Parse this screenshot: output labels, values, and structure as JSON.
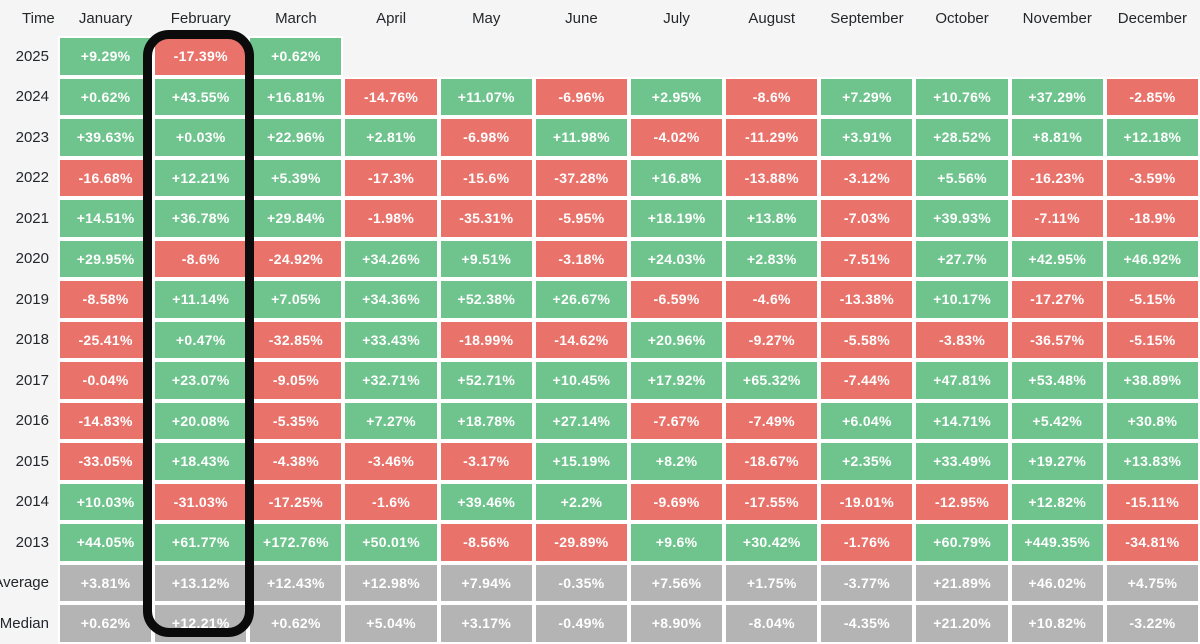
{
  "table": {
    "time_header": "Time",
    "months": [
      "January",
      "February",
      "March",
      "April",
      "May",
      "June",
      "July",
      "August",
      "September",
      "October",
      "November",
      "December"
    ],
    "rows": [
      {
        "label": "2025",
        "type": "year",
        "cells": [
          "+9.29%",
          "-17.39%",
          "+0.62%",
          null,
          null,
          null,
          null,
          null,
          null,
          null,
          null,
          null
        ]
      },
      {
        "label": "2024",
        "type": "year",
        "cells": [
          "+0.62%",
          "+43.55%",
          "+16.81%",
          "-14.76%",
          "+11.07%",
          "-6.96%",
          "+2.95%",
          "-8.6%",
          "+7.29%",
          "+10.76%",
          "+37.29%",
          "-2.85%"
        ]
      },
      {
        "label": "2023",
        "type": "year",
        "cells": [
          "+39.63%",
          "+0.03%",
          "+22.96%",
          "+2.81%",
          "-6.98%",
          "+11.98%",
          "-4.02%",
          "-11.29%",
          "+3.91%",
          "+28.52%",
          "+8.81%",
          "+12.18%"
        ]
      },
      {
        "label": "2022",
        "type": "year",
        "cells": [
          "-16.68%",
          "+12.21%",
          "+5.39%",
          "-17.3%",
          "-15.6%",
          "-37.28%",
          "+16.8%",
          "-13.88%",
          "-3.12%",
          "+5.56%",
          "-16.23%",
          "-3.59%"
        ]
      },
      {
        "label": "2021",
        "type": "year",
        "cells": [
          "+14.51%",
          "+36.78%",
          "+29.84%",
          "-1.98%",
          "-35.31%",
          "-5.95%",
          "+18.19%",
          "+13.8%",
          "-7.03%",
          "+39.93%",
          "-7.11%",
          "-18.9%"
        ]
      },
      {
        "label": "2020",
        "type": "year",
        "cells": [
          "+29.95%",
          "-8.6%",
          "-24.92%",
          "+34.26%",
          "+9.51%",
          "-3.18%",
          "+24.03%",
          "+2.83%",
          "-7.51%",
          "+27.7%",
          "+42.95%",
          "+46.92%"
        ]
      },
      {
        "label": "2019",
        "type": "year",
        "cells": [
          "-8.58%",
          "+11.14%",
          "+7.05%",
          "+34.36%",
          "+52.38%",
          "+26.67%",
          "-6.59%",
          "-4.6%",
          "-13.38%",
          "+10.17%",
          "-17.27%",
          "-5.15%"
        ]
      },
      {
        "label": "2018",
        "type": "year",
        "cells": [
          "-25.41%",
          "+0.47%",
          "-32.85%",
          "+33.43%",
          "-18.99%",
          "-14.62%",
          "+20.96%",
          "-9.27%",
          "-5.58%",
          "-3.83%",
          "-36.57%",
          "-5.15%"
        ]
      },
      {
        "label": "2017",
        "type": "year",
        "cells": [
          "-0.04%",
          "+23.07%",
          "-9.05%",
          "+32.71%",
          "+52.71%",
          "+10.45%",
          "+17.92%",
          "+65.32%",
          "-7.44%",
          "+47.81%",
          "+53.48%",
          "+38.89%"
        ]
      },
      {
        "label": "2016",
        "type": "year",
        "cells": [
          "-14.83%",
          "+20.08%",
          "-5.35%",
          "+7.27%",
          "+18.78%",
          "+27.14%",
          "-7.67%",
          "-7.49%",
          "+6.04%",
          "+14.71%",
          "+5.42%",
          "+30.8%"
        ]
      },
      {
        "label": "2015",
        "type": "year",
        "cells": [
          "-33.05%",
          "+18.43%",
          "-4.38%",
          "-3.46%",
          "-3.17%",
          "+15.19%",
          "+8.2%",
          "-18.67%",
          "+2.35%",
          "+33.49%",
          "+19.27%",
          "+13.83%"
        ]
      },
      {
        "label": "2014",
        "type": "year",
        "cells": [
          "+10.03%",
          "-31.03%",
          "-17.25%",
          "-1.6%",
          "+39.46%",
          "+2.2%",
          "-9.69%",
          "-17.55%",
          "-19.01%",
          "-12.95%",
          "+12.82%",
          "-15.11%"
        ]
      },
      {
        "label": "2013",
        "type": "year",
        "cells": [
          "+44.05%",
          "+61.77%",
          "+172.76%",
          "+50.01%",
          "-8.56%",
          "-29.89%",
          "+9.6%",
          "+30.42%",
          "-1.76%",
          "+60.79%",
          "+449.35%",
          "-34.81%"
        ]
      },
      {
        "label": "Average",
        "type": "summary",
        "cells": [
          "+3.81%",
          "+13.12%",
          "+12.43%",
          "+12.98%",
          "+7.94%",
          "-0.35%",
          "+7.56%",
          "+1.75%",
          "-3.77%",
          "+21.89%",
          "+46.02%",
          "+4.75%"
        ]
      },
      {
        "label": "Median",
        "type": "summary",
        "cells": [
          "+0.62%",
          "+12.21%",
          "+0.62%",
          "+5.04%",
          "+3.17%",
          "-0.49%",
          "+8.90%",
          "-8.04%",
          "-4.35%",
          "+21.20%",
          "+10.82%",
          "-3.22%"
        ]
      }
    ]
  },
  "highlight": {
    "column": "February"
  },
  "colors": {
    "positive": "#6fc48e",
    "negative": "#e9726b",
    "summary": "#b4b4b4",
    "highlight_border": "#0b0b0b",
    "cell_text": "#ffffff",
    "label_text": "#24272a",
    "background": "#f5f5f6",
    "cell_gap": "#ffffff"
  },
  "chart_data": {
    "type": "heatmap",
    "x_categories": [
      "January",
      "February",
      "March",
      "April",
      "May",
      "June",
      "July",
      "August",
      "September",
      "October",
      "November",
      "December"
    ],
    "y_categories": [
      "2025",
      "2024",
      "2023",
      "2022",
      "2021",
      "2020",
      "2019",
      "2018",
      "2017",
      "2016",
      "2015",
      "2014",
      "2013",
      "Average",
      "Median"
    ],
    "unit": "%",
    "legend_position": "none",
    "highlighted_column": "February",
    "series": [
      {
        "name": "2025",
        "values": [
          9.29,
          -17.39,
          0.62,
          null,
          null,
          null,
          null,
          null,
          null,
          null,
          null,
          null
        ]
      },
      {
        "name": "2024",
        "values": [
          0.62,
          43.55,
          16.81,
          -14.76,
          11.07,
          -6.96,
          2.95,
          -8.6,
          7.29,
          10.76,
          37.29,
          -2.85
        ]
      },
      {
        "name": "2023",
        "values": [
          39.63,
          0.03,
          22.96,
          2.81,
          -6.98,
          11.98,
          -4.02,
          -11.29,
          3.91,
          28.52,
          8.81,
          12.18
        ]
      },
      {
        "name": "2022",
        "values": [
          -16.68,
          12.21,
          5.39,
          -17.3,
          -15.6,
          -37.28,
          16.8,
          -13.88,
          -3.12,
          5.56,
          -16.23,
          -3.59
        ]
      },
      {
        "name": "2021",
        "values": [
          14.51,
          36.78,
          29.84,
          -1.98,
          -35.31,
          -5.95,
          18.19,
          13.8,
          -7.03,
          39.93,
          -7.11,
          -18.9
        ]
      },
      {
        "name": "2020",
        "values": [
          29.95,
          -8.6,
          -24.92,
          34.26,
          9.51,
          -3.18,
          24.03,
          2.83,
          -7.51,
          27.7,
          42.95,
          46.92
        ]
      },
      {
        "name": "2019",
        "values": [
          -8.58,
          11.14,
          7.05,
          34.36,
          52.38,
          26.67,
          -6.59,
          -4.6,
          -13.38,
          10.17,
          -17.27,
          -5.15
        ]
      },
      {
        "name": "2018",
        "values": [
          -25.41,
          0.47,
          -32.85,
          33.43,
          -18.99,
          -14.62,
          20.96,
          -9.27,
          -5.58,
          -3.83,
          -36.57,
          -5.15
        ]
      },
      {
        "name": "2017",
        "values": [
          -0.04,
          23.07,
          -9.05,
          32.71,
          52.71,
          10.45,
          17.92,
          65.32,
          -7.44,
          47.81,
          53.48,
          38.89
        ]
      },
      {
        "name": "2016",
        "values": [
          -14.83,
          20.08,
          -5.35,
          7.27,
          18.78,
          27.14,
          -7.67,
          -7.49,
          6.04,
          14.71,
          5.42,
          30.8
        ]
      },
      {
        "name": "2015",
        "values": [
          -33.05,
          18.43,
          -4.38,
          -3.46,
          -3.17,
          15.19,
          8.2,
          -18.67,
          2.35,
          33.49,
          19.27,
          13.83
        ]
      },
      {
        "name": "2014",
        "values": [
          10.03,
          -31.03,
          -17.25,
          -1.6,
          39.46,
          2.2,
          -9.69,
          -17.55,
          -19.01,
          -12.95,
          12.82,
          -15.11
        ]
      },
      {
        "name": "2013",
        "values": [
          44.05,
          61.77,
          172.76,
          50.01,
          -8.56,
          -29.89,
          9.6,
          30.42,
          -1.76,
          60.79,
          449.35,
          -34.81
        ]
      },
      {
        "name": "Average",
        "values": [
          3.81,
          13.12,
          12.43,
          12.98,
          7.94,
          -0.35,
          7.56,
          1.75,
          -3.77,
          21.89,
          46.02,
          4.75
        ]
      },
      {
        "name": "Median",
        "values": [
          0.62,
          12.21,
          0.62,
          5.04,
          3.17,
          -0.49,
          8.9,
          -8.04,
          -4.35,
          21.2,
          10.82,
          -3.22
        ]
      }
    ]
  }
}
